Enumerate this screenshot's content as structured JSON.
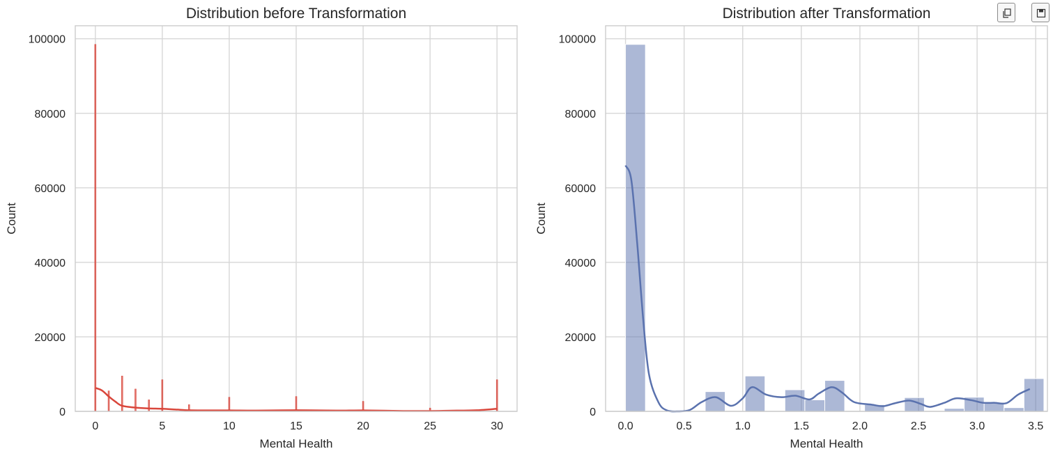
{
  "toolbar": {
    "icons": [
      "copy-icon",
      "save-icon"
    ]
  },
  "chart_data": [
    {
      "type": "histogram",
      "title": "Distribution before Transformation",
      "xlabel": "Mental Health",
      "ylabel": "Count",
      "xlim": [
        -1.5,
        31.5
      ],
      "ylim": [
        0,
        103500
      ],
      "xticks": [
        0,
        5,
        10,
        15,
        20,
        25,
        30
      ],
      "yticks": [
        0,
        20000,
        40000,
        60000,
        80000,
        100000
      ],
      "grid": true,
      "color": "#d9463b",
      "bars": [
        {
          "x": 0,
          "count": 98500
        },
        {
          "x": 1,
          "count": 5500
        },
        {
          "x": 2,
          "count": 9500
        },
        {
          "x": 3,
          "count": 6000
        },
        {
          "x": 4,
          "count": 3100
        },
        {
          "x": 5,
          "count": 8500
        },
        {
          "x": 7,
          "count": 1800
        },
        {
          "x": 10,
          "count": 3800
        },
        {
          "x": 15,
          "count": 4000
        },
        {
          "x": 20,
          "count": 2700
        },
        {
          "x": 25,
          "count": 900
        },
        {
          "x": 30,
          "count": 8500
        }
      ],
      "kde": [
        [
          0,
          6300
        ],
        [
          0.5,
          5600
        ],
        [
          1,
          4000
        ],
        [
          1.5,
          2600
        ],
        [
          2,
          1500
        ],
        [
          3,
          1000
        ],
        [
          4,
          800
        ],
        [
          5,
          700
        ],
        [
          6,
          500
        ],
        [
          7,
          300
        ],
        [
          8,
          250
        ],
        [
          10,
          250
        ],
        [
          12,
          200
        ],
        [
          15,
          300
        ],
        [
          18,
          200
        ],
        [
          20,
          250
        ],
        [
          23,
          100
        ],
        [
          25,
          100
        ],
        [
          27,
          200
        ],
        [
          28.5,
          300
        ],
        [
          30,
          700
        ]
      ]
    },
    {
      "type": "histogram",
      "title": "Distribution after Transformation",
      "xlabel": "Mental Health",
      "ylabel": "Count",
      "xlim": [
        -0.17,
        3.6
      ],
      "ylim": [
        0,
        103500
      ],
      "xticks": [
        0.0,
        0.5,
        1.0,
        1.5,
        2.0,
        2.5,
        3.0,
        3.5
      ],
      "yticks": [
        0,
        20000,
        40000,
        60000,
        80000,
        100000
      ],
      "grid": true,
      "color": "#5a72ae",
      "bin_width": 0.17,
      "bars": [
        {
          "x": 0.0,
          "count": 98500
        },
        {
          "x": 0.17,
          "count": 0
        },
        {
          "x": 0.34,
          "count": 0
        },
        {
          "x": 0.51,
          "count": 0
        },
        {
          "x": 0.68,
          "count": 5300
        },
        {
          "x": 0.85,
          "count": 0
        },
        {
          "x": 1.02,
          "count": 9500
        },
        {
          "x": 1.19,
          "count": 0
        },
        {
          "x": 1.36,
          "count": 5800
        },
        {
          "x": 1.53,
          "count": 3100
        },
        {
          "x": 1.7,
          "count": 8300
        },
        {
          "x": 1.87,
          "count": 0
        },
        {
          "x": 2.04,
          "count": 1800
        },
        {
          "x": 2.21,
          "count": 0
        },
        {
          "x": 2.38,
          "count": 3700
        },
        {
          "x": 2.55,
          "count": 0
        },
        {
          "x": 2.72,
          "count": 800
        },
        {
          "x": 2.89,
          "count": 3800
        },
        {
          "x": 3.06,
          "count": 2400
        },
        {
          "x": 3.23,
          "count": 1000
        },
        {
          "x": 3.4,
          "count": 8800
        }
      ],
      "kde": [
        [
          0.0,
          66000
        ],
        [
          0.05,
          62000
        ],
        [
          0.1,
          45000
        ],
        [
          0.15,
          25000
        ],
        [
          0.2,
          10000
        ],
        [
          0.28,
          2500
        ],
        [
          0.35,
          300
        ],
        [
          0.45,
          0
        ],
        [
          0.55,
          400
        ],
        [
          0.65,
          2500
        ],
        [
          0.77,
          3800
        ],
        [
          0.9,
          1500
        ],
        [
          1.0,
          3500
        ],
        [
          1.08,
          6500
        ],
        [
          1.2,
          4500
        ],
        [
          1.33,
          3800
        ],
        [
          1.45,
          4200
        ],
        [
          1.57,
          3200
        ],
        [
          1.65,
          4800
        ],
        [
          1.76,
          6500
        ],
        [
          1.85,
          5000
        ],
        [
          1.95,
          2500
        ],
        [
          2.1,
          1800
        ],
        [
          2.2,
          1400
        ],
        [
          2.3,
          2200
        ],
        [
          2.42,
          2900
        ],
        [
          2.52,
          2000
        ],
        [
          2.6,
          1200
        ],
        [
          2.72,
          2300
        ],
        [
          2.82,
          3500
        ],
        [
          2.95,
          3000
        ],
        [
          3.05,
          2300
        ],
        [
          3.15,
          2300
        ],
        [
          3.25,
          2200
        ],
        [
          3.35,
          4500
        ],
        [
          3.45,
          6000
        ]
      ]
    }
  ]
}
